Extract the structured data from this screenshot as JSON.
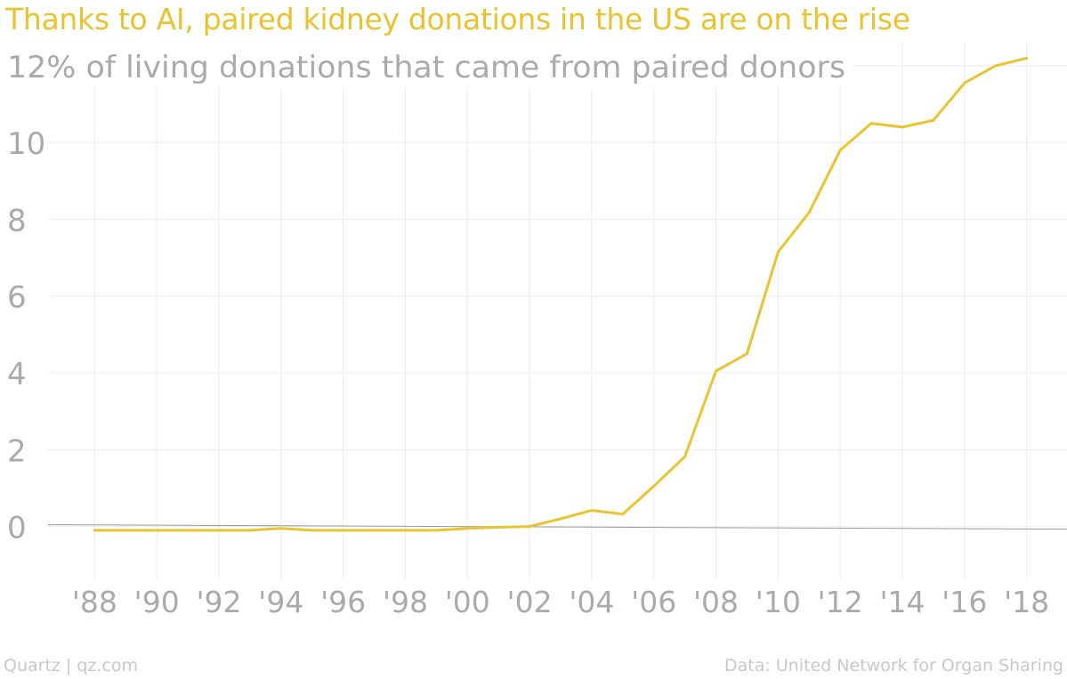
{
  "title": "Thanks to AI, paired kidney donations in the US are on the rise",
  "footer": {
    "credit": "Quartz | qz.com",
    "source": "Data: United Network for Organ Sharing"
  },
  "colors": {
    "title": "#e8c32e",
    "line": "#e9c431",
    "axis_text": "#aaaaaa",
    "grid": "#ececec",
    "baseline": "#9a9a9a"
  },
  "chart_data": {
    "type": "line",
    "y_header": "12% of living donations that came from paired donors",
    "x_tick_labels": [
      "'88",
      "'90",
      "'92",
      "'94",
      "'96",
      "'98",
      "'00",
      "'02",
      "'04",
      "'06",
      "'08",
      "'10",
      "'12",
      "'14",
      "'16",
      "'18"
    ],
    "y_tick_labels": [
      "0",
      "2",
      "4",
      "6",
      "8",
      "10"
    ],
    "ylim": [
      -1.4,
      12.6
    ],
    "xlim": [
      1986.5,
      2019.3
    ],
    "grid": true,
    "series": [
      {
        "x": [
          1988,
          1989,
          1990,
          1991,
          1992,
          1993,
          1994,
          1995,
          1996,
          1997,
          1998,
          1999,
          2000,
          2001,
          2002,
          2003,
          2004,
          2005,
          2006,
          2007,
          2008,
          2009,
          2010,
          2011,
          2012,
          2013,
          2014,
          2015,
          2016,
          2017,
          2018
        ],
        "values": [
          -0.1,
          -0.1,
          -0.1,
          -0.1,
          -0.1,
          -0.1,
          -0.05,
          -0.1,
          -0.1,
          -0.1,
          -0.1,
          -0.1,
          -0.05,
          -0.02,
          0.0,
          0.2,
          0.42,
          0.32,
          1.05,
          1.82,
          4.05,
          4.5,
          7.15,
          8.18,
          9.8,
          10.5,
          10.4,
          10.58,
          11.55,
          12.0,
          12.2
        ]
      }
    ]
  }
}
